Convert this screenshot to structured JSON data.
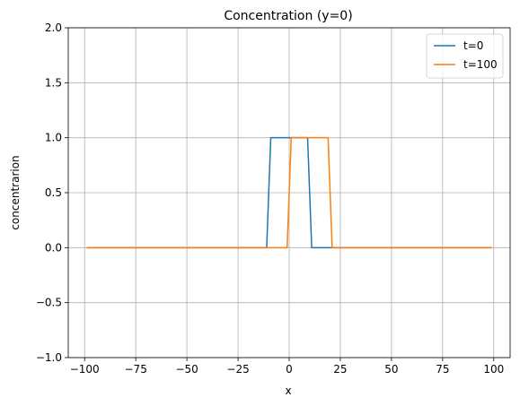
{
  "chart_data": {
    "type": "line",
    "title": "Concentration (y=0)",
    "xlabel": "x",
    "ylabel": "concentrarion",
    "xlim": [
      -108,
      108
    ],
    "ylim": [
      -1.0,
      2.0
    ],
    "xticks": [
      -100,
      -75,
      -50,
      -25,
      0,
      25,
      50,
      75,
      100
    ],
    "xtick_labels": [
      "−100",
      "−75",
      "−50",
      "−25",
      "0",
      "25",
      "50",
      "75",
      "100"
    ],
    "yticks": [
      -1.0,
      -0.5,
      0.0,
      0.5,
      1.0,
      1.5,
      2.0
    ],
    "ytick_labels": [
      "−1.0",
      "−0.5",
      "0.0",
      "0.5",
      "1.0",
      "1.5",
      "2.0"
    ],
    "grid": true,
    "legend_position": "top-right",
    "series": [
      {
        "name": "t=0",
        "color": "#1f77b4",
        "x": [
          -99,
          -11,
          -9,
          9,
          11,
          99
        ],
        "y": [
          0,
          0,
          1,
          1,
          0,
          0
        ]
      },
      {
        "name": "t=100",
        "color": "#ff7f0e",
        "x": [
          -99,
          -1,
          1,
          19,
          21,
          99
        ],
        "y": [
          0,
          0,
          1,
          1,
          0,
          0
        ]
      }
    ]
  }
}
